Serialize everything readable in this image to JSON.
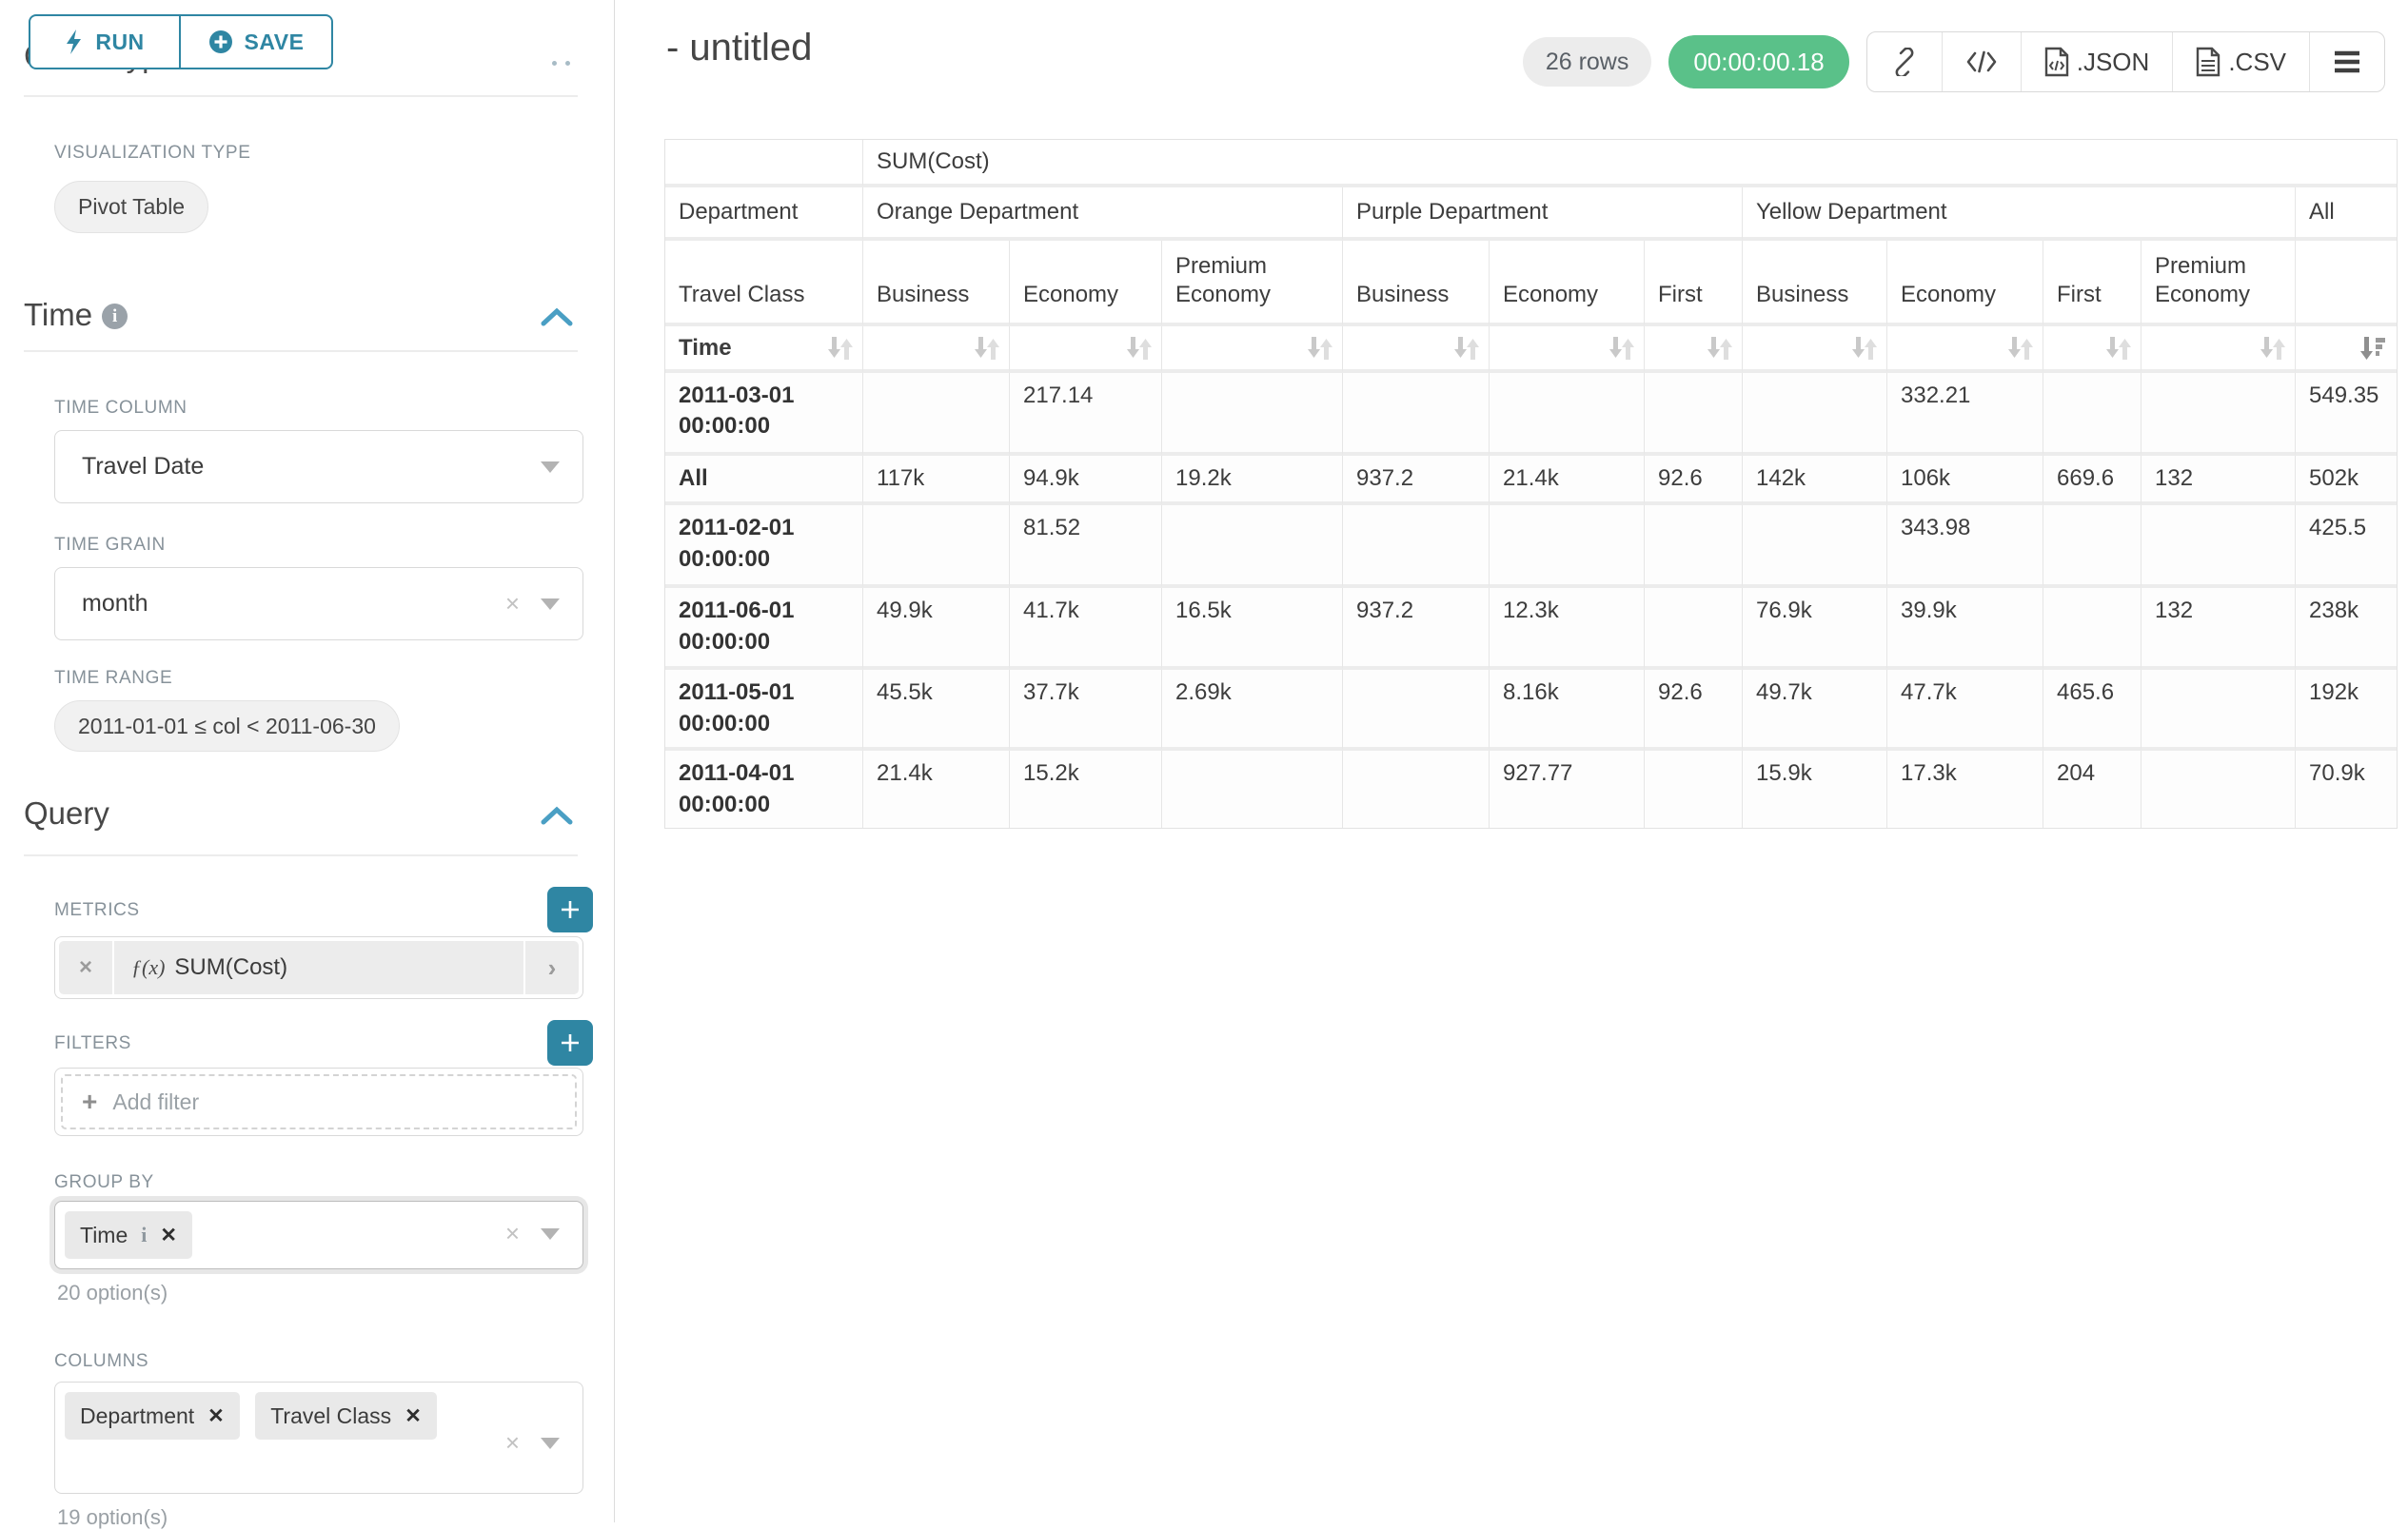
{
  "sidebar": {
    "run_button": "RUN",
    "save_button": "SAVE",
    "chart_type_heading": "Chart Type",
    "viz_type": {
      "label": "VISUALIZATION TYPE",
      "value": "Pivot Table"
    },
    "time": {
      "title": "Time",
      "time_column_label": "TIME COLUMN",
      "time_column_value": "Travel Date",
      "time_grain_label": "TIME GRAIN",
      "time_grain_value": "month",
      "time_range_label": "TIME RANGE",
      "time_range_value": "2011-01-01 ≤ col < 2011-06-30"
    },
    "query": {
      "title": "Query",
      "metrics_label": "METRICS",
      "metric_fx": "ƒ(x)",
      "metric_chip": "SUM(Cost)",
      "filters_label": "FILTERS",
      "add_filter": "Add filter",
      "group_by_label": "GROUP BY",
      "group_by_chips": [
        "Time"
      ],
      "group_by_options": "20 option(s)",
      "columns_label": "COLUMNS",
      "columns_chips": [
        "Department",
        "Travel Class"
      ],
      "columns_options": "19 option(s)"
    }
  },
  "header": {
    "title": "- untitled",
    "rows_badge": "26 rows",
    "timer": "00:00:00.18",
    "json_label": ".JSON",
    "csv_label": ".CSV"
  },
  "icons": {
    "run": "lightning-icon",
    "save": "plus-circle-icon",
    "share": "link-icon",
    "embed": "code-icon",
    "menu": "hamburger-icon ≡",
    "sort": "sort-arrows-icon ⇅",
    "sort_desc": "sort-descending-icon"
  },
  "colors": {
    "primary": "#2f86a3",
    "success": "#5ac189"
  },
  "pivot": {
    "metric_header": "SUM(Cost)",
    "row_dim_label": "Department",
    "row_dim2_label": "Travel Class",
    "time_label": "Time",
    "col_groups": [
      {
        "label": "Orange Department",
        "children": [
          "Business",
          "Economy",
          "Premium Economy"
        ]
      },
      {
        "label": "Purple Department",
        "children": [
          "Business",
          "Economy",
          "First"
        ]
      },
      {
        "label": "Yellow Department",
        "children": [
          "Business",
          "Economy",
          "First",
          "Premium Economy"
        ]
      },
      {
        "label": "All",
        "children": [
          ""
        ]
      }
    ],
    "rows": [
      {
        "label": "2011-03-01 00:00:00",
        "values": [
          "",
          "217.14",
          "",
          "",
          "",
          "",
          "",
          "332.21",
          "",
          "",
          "549.35"
        ]
      },
      {
        "label": "All",
        "values": [
          "117k",
          "94.9k",
          "19.2k",
          "937.2",
          "21.4k",
          "92.6",
          "142k",
          "106k",
          "669.6",
          "132",
          "502k"
        ]
      },
      {
        "label": "2011-02-01 00:00:00",
        "values": [
          "",
          "81.52",
          "",
          "",
          "",
          "",
          "",
          "343.98",
          "",
          "",
          "425.5"
        ]
      },
      {
        "label": "2011-06-01 00:00:00",
        "values": [
          "49.9k",
          "41.7k",
          "16.5k",
          "937.2",
          "12.3k",
          "",
          "76.9k",
          "39.9k",
          "",
          "132",
          "238k"
        ]
      },
      {
        "label": "2011-05-01 00:00:00",
        "values": [
          "45.5k",
          "37.7k",
          "2.69k",
          "",
          "8.16k",
          "92.6",
          "49.7k",
          "47.7k",
          "465.6",
          "",
          "192k"
        ]
      },
      {
        "label": "2011-04-01 00:00:00",
        "values": [
          "21.4k",
          "15.2k",
          "",
          "",
          "927.77",
          "",
          "15.9k",
          "17.3k",
          "204",
          "",
          "70.9k"
        ]
      }
    ]
  }
}
